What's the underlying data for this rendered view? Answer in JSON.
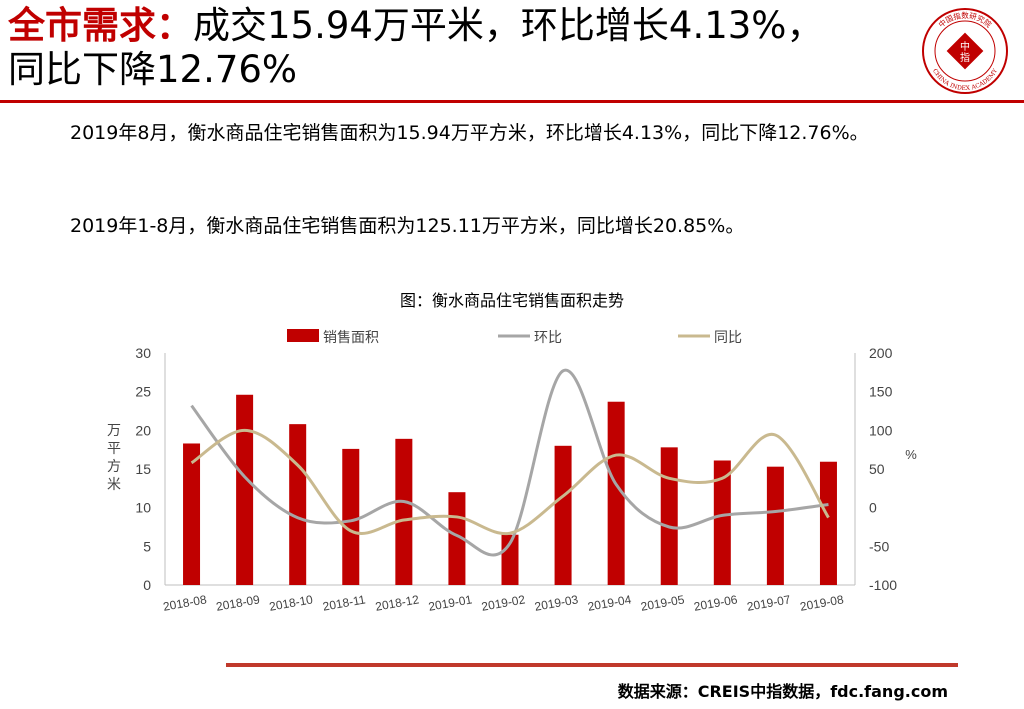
{
  "header": {
    "title_highlight": "全市需求：",
    "title_line1_rest": "成交15.94万平米，环比增长4.13%，",
    "title_line2": "同比下降12.76%"
  },
  "logo": {
    "top_text": "中国指数研究院",
    "center_text": "中",
    "center_text2": "指",
    "bottom_text": "CHINA INDEX ACADEMY",
    "color": "#c00000"
  },
  "body": {
    "paragraph1": "2019年8月，衡水商品住宅销售面积为15.94万平方米，环比增长4.13%，同比下降12.76%。",
    "paragraph2": "2019年1-8月，衡水商品住宅销售面积为125.11万平方米，同比增长20.85%。"
  },
  "footer": {
    "source": "数据来源：CREIS中指数据，fdc.fang.com"
  },
  "colors": {
    "bar": "#c00000",
    "mom": "#a6a6a6",
    "yoy": "#c9b98f",
    "accent": "#c00000"
  },
  "chart_data": {
    "type": "bar",
    "title": "图：衡水商品住宅销售面积走势",
    "categories": [
      "2018-08",
      "2018-09",
      "2018-10",
      "2018-11",
      "2018-12",
      "2019-01",
      "2019-02",
      "2019-03",
      "2019-04",
      "2019-05",
      "2019-06",
      "2019-07",
      "2019-08"
    ],
    "ylabel_left": "万平方米",
    "ylabel_right": "%",
    "ylim_left": [
      0,
      30
    ],
    "ylim_right": [
      -100,
      200
    ],
    "yticks_left": [
      0,
      5,
      10,
      15,
      20,
      25,
      30
    ],
    "yticks_right": [
      -100,
      -50,
      0,
      50,
      100,
      150,
      200
    ],
    "legend_position": "top",
    "series": [
      {
        "name": "销售面积",
        "type": "bar",
        "axis": "left",
        "values": [
          18.3,
          24.6,
          20.8,
          17.6,
          18.9,
          12.0,
          6.5,
          18.0,
          23.7,
          17.8,
          16.1,
          15.3,
          15.94
        ]
      },
      {
        "name": "环比",
        "type": "line",
        "axis": "right",
        "values": [
          132,
          40,
          -13,
          -17,
          8,
          -36,
          -46,
          177,
          30,
          -25,
          -10,
          -5,
          4.13
        ]
      },
      {
        "name": "同比",
        "type": "line",
        "axis": "right",
        "values": [
          58,
          100,
          55,
          -30,
          -16,
          -12,
          -33,
          15,
          68,
          38,
          38,
          94,
          -12.76
        ]
      }
    ]
  }
}
